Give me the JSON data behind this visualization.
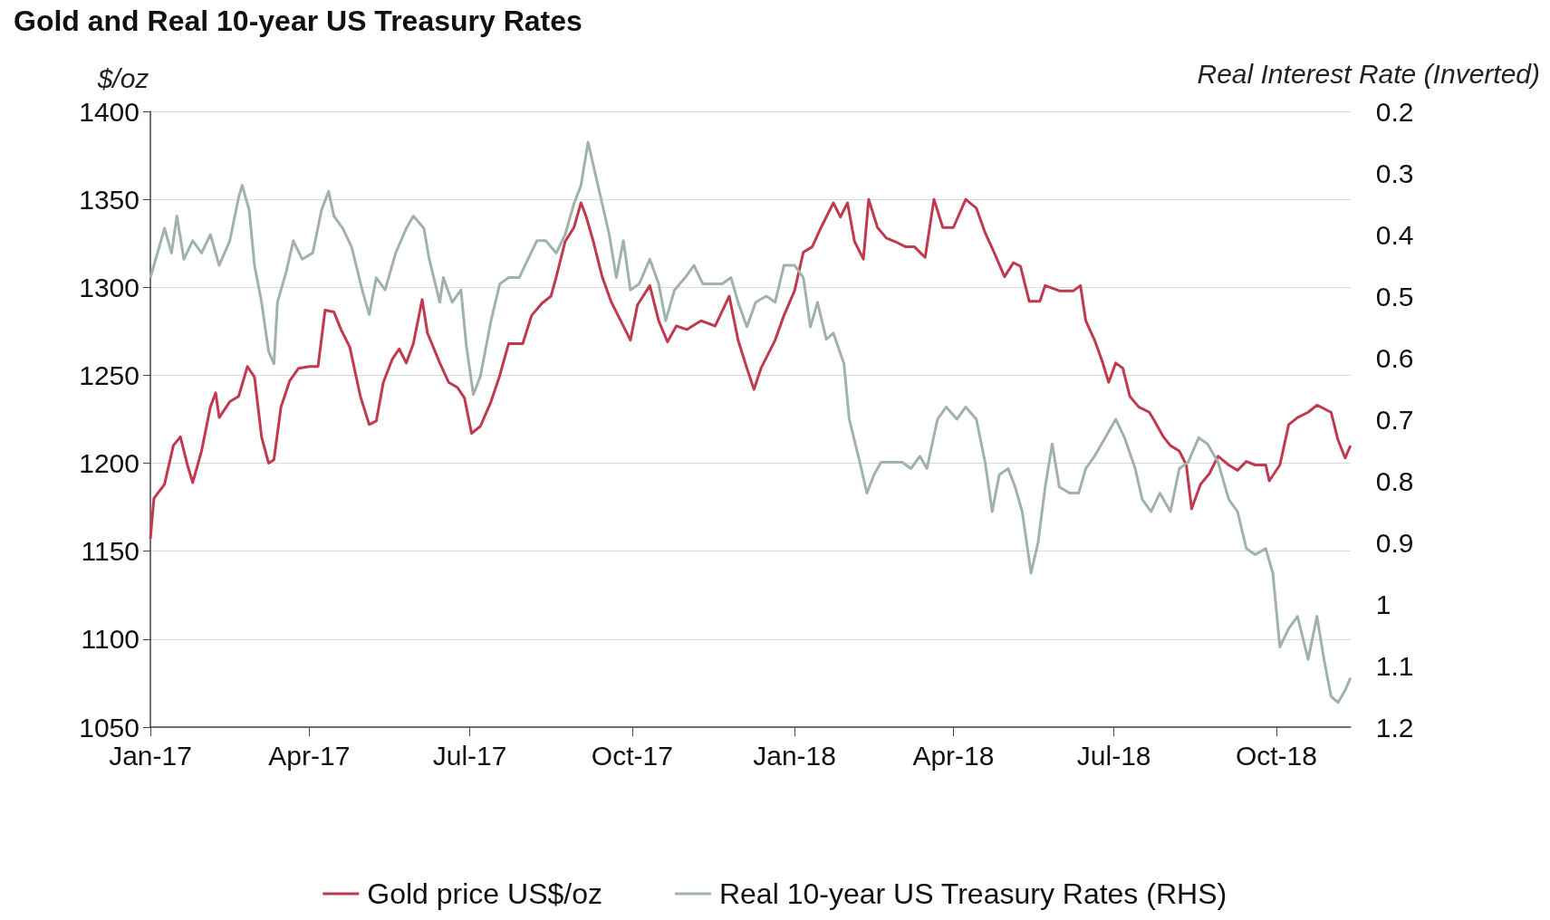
{
  "chart_data": {
    "type": "line",
    "title": "Gold and Real 10-year US Treasury Rates",
    "ylabel": "$/oz",
    "y2label": "Real Interest Rate (Inverted)",
    "xlim": [
      "2017-01-01",
      "2018-11-12"
    ],
    "xticks": [
      {
        "value": "2017-01-01",
        "label": "Jan-17"
      },
      {
        "value": "2017-04-01",
        "label": "Apr-17"
      },
      {
        "value": "2017-07-01",
        "label": "Jul-17"
      },
      {
        "value": "2017-10-01",
        "label": "Oct-17"
      },
      {
        "value": "2018-01-01",
        "label": "Jan-18"
      },
      {
        "value": "2018-04-01",
        "label": "Apr-18"
      },
      {
        "value": "2018-07-01",
        "label": "Jul-18"
      },
      {
        "value": "2018-10-01",
        "label": "Oct-18"
      }
    ],
    "ylim": [
      1050,
      1400
    ],
    "yticks": [
      1050,
      1100,
      1150,
      1200,
      1250,
      1300,
      1350,
      1400
    ],
    "y2lim": [
      1.2,
      0.2
    ],
    "y2ticks": [
      0.2,
      0.3,
      0.4,
      0.5,
      0.6,
      0.7,
      0.8,
      0.9,
      1,
      1.1,
      1.2
    ],
    "grid": "y",
    "legend": "bottom",
    "series": [
      {
        "name": "Gold price US$/oz",
        "color": "#c0394e",
        "x": [
          "2017-01-01",
          "2017-01-03",
          "2017-01-09",
          "2017-01-14",
          "2017-01-18",
          "2017-01-22",
          "2017-01-25",
          "2017-01-30",
          "2017-02-04",
          "2017-02-07",
          "2017-02-09",
          "2017-02-15",
          "2017-02-20",
          "2017-02-25",
          "2017-03-01",
          "2017-03-05",
          "2017-03-09",
          "2017-03-12",
          "2017-03-16",
          "2017-03-21",
          "2017-03-26",
          "2017-04-01",
          "2017-04-06",
          "2017-04-10",
          "2017-04-15",
          "2017-04-19",
          "2017-04-24",
          "2017-04-30",
          "2017-05-05",
          "2017-05-09",
          "2017-05-13",
          "2017-05-18",
          "2017-05-22",
          "2017-05-26",
          "2017-05-30",
          "2017-06-04",
          "2017-06-07",
          "2017-06-14",
          "2017-06-19",
          "2017-06-24",
          "2017-06-28",
          "2017-07-02",
          "2017-07-07",
          "2017-07-13",
          "2017-07-18",
          "2017-07-23",
          "2017-07-31",
          "2017-08-05",
          "2017-08-11",
          "2017-08-16",
          "2017-08-19",
          "2017-08-24",
          "2017-08-29",
          "2017-09-02",
          "2017-09-05",
          "2017-09-09",
          "2017-09-14",
          "2017-09-19",
          "2017-09-25",
          "2017-09-30",
          "2017-10-04",
          "2017-10-11",
          "2017-10-16",
          "2017-10-21",
          "2017-10-26",
          "2017-11-01",
          "2017-11-09",
          "2017-11-17",
          "2017-11-25",
          "2017-11-30",
          "2017-12-05",
          "2017-12-09",
          "2017-12-13",
          "2017-12-21",
          "2017-12-26",
          "2018-01-01",
          "2018-01-06",
          "2018-01-11",
          "2018-01-16",
          "2018-01-23",
          "2018-01-27",
          "2018-01-31",
          "2018-02-04",
          "2018-02-09",
          "2018-02-12",
          "2018-02-17",
          "2018-02-22",
          "2018-02-27",
          "2018-03-05",
          "2018-03-10",
          "2018-03-16",
          "2018-03-21",
          "2018-03-26",
          "2018-04-01",
          "2018-04-08",
          "2018-04-14",
          "2018-04-19",
          "2018-04-24",
          "2018-04-30",
          "2018-05-05",
          "2018-05-09",
          "2018-05-14",
          "2018-05-20",
          "2018-05-23",
          "2018-05-31",
          "2018-06-08",
          "2018-06-12",
          "2018-06-15",
          "2018-06-20",
          "2018-06-24",
          "2018-06-28",
          "2018-07-02",
          "2018-07-06",
          "2018-07-10",
          "2018-07-15",
          "2018-07-21",
          "2018-07-24",
          "2018-07-29",
          "2018-08-02",
          "2018-08-07",
          "2018-08-11",
          "2018-08-14",
          "2018-08-19",
          "2018-08-24",
          "2018-08-29",
          "2018-09-04",
          "2018-09-09",
          "2018-09-14",
          "2018-09-19",
          "2018-09-25",
          "2018-09-27",
          "2018-10-03",
          "2018-10-08",
          "2018-10-13",
          "2018-10-19",
          "2018-10-24",
          "2018-11-01",
          "2018-11-05",
          "2018-11-09",
          "2018-11-12"
        ],
        "values": [
          1157,
          1180,
          1188,
          1210,
          1215,
          1199,
          1189,
          1207,
          1232,
          1240,
          1226,
          1235,
          1238,
          1255,
          1249,
          1215,
          1200,
          1202,
          1232,
          1247,
          1254,
          1255,
          1255,
          1287,
          1286,
          1276,
          1266,
          1238,
          1222,
          1224,
          1246,
          1259,
          1265,
          1257,
          1268,
          1293,
          1274,
          1257,
          1246,
          1243,
          1237,
          1217,
          1221,
          1235,
          1250,
          1268,
          1268,
          1284,
          1291,
          1295,
          1306,
          1326,
          1334,
          1348,
          1340,
          1326,
          1306,
          1292,
          1280,
          1270,
          1290,
          1301,
          1281,
          1269,
          1278,
          1276,
          1281,
          1278,
          1295,
          1270,
          1254,
          1242,
          1254,
          1270,
          1284,
          1298,
          1320,
          1323,
          1334,
          1348,
          1340,
          1348,
          1326,
          1316,
          1350,
          1334,
          1328,
          1326,
          1323,
          1323,
          1317,
          1350,
          1334,
          1334,
          1350,
          1345,
          1331,
          1320,
          1306,
          1314,
          1312,
          1292,
          1292,
          1301,
          1298,
          1298,
          1301,
          1281,
          1270,
          1259,
          1246,
          1257,
          1254,
          1238,
          1232,
          1229,
          1224,
          1215,
          1210,
          1207,
          1199,
          1174,
          1188,
          1194,
          1204,
          1199,
          1196,
          1201,
          1199,
          1199,
          1190,
          1199,
          1222,
          1226,
          1229,
          1233,
          1229,
          1213,
          1203,
          1210
        ]
      },
      {
        "name": "Real 10-year US Treasury Rates (RHS)",
        "color": "#9fb2ab",
        "axis": "y2",
        "x": [
          "2017-01-01",
          "2017-01-03",
          "2017-01-09",
          "2017-01-13",
          "2017-01-16",
          "2017-01-20",
          "2017-01-25",
          "2017-01-30",
          "2017-02-04",
          "2017-02-09",
          "2017-02-15",
          "2017-02-20",
          "2017-02-22",
          "2017-02-26",
          "2017-03-01",
          "2017-03-05",
          "2017-03-09",
          "2017-03-12",
          "2017-03-14",
          "2017-03-19",
          "2017-03-23",
          "2017-03-28",
          "2017-04-03",
          "2017-04-08",
          "2017-04-12",
          "2017-04-15",
          "2017-04-20",
          "2017-04-25",
          "2017-05-01",
          "2017-05-05",
          "2017-05-09",
          "2017-05-14",
          "2017-05-20",
          "2017-05-26",
          "2017-05-30",
          "2017-06-05",
          "2017-06-08",
          "2017-06-14",
          "2017-06-16",
          "2017-06-21",
          "2017-06-26",
          "2017-06-29",
          "2017-07-03",
          "2017-07-07",
          "2017-07-13",
          "2017-07-18",
          "2017-07-23",
          "2017-07-29",
          "2017-08-03",
          "2017-08-08",
          "2017-08-13",
          "2017-08-19",
          "2017-08-24",
          "2017-08-29",
          "2017-09-02",
          "2017-09-06",
          "2017-09-10",
          "2017-09-14",
          "2017-09-18",
          "2017-09-22",
          "2017-09-26",
          "2017-09-30",
          "2017-10-05",
          "2017-10-11",
          "2017-10-16",
          "2017-10-20",
          "2017-10-25",
          "2017-10-31",
          "2017-11-05",
          "2017-11-10",
          "2017-11-16",
          "2017-11-21",
          "2017-11-26",
          "2017-11-30",
          "2017-12-05",
          "2017-12-10",
          "2017-12-16",
          "2017-12-21",
          "2017-12-26",
          "2018-01-01",
          "2018-01-06",
          "2018-01-10",
          "2018-01-14",
          "2018-01-19",
          "2018-01-23",
          "2018-01-29",
          "2018-02-01",
          "2018-02-07",
          "2018-02-11",
          "2018-02-15",
          "2018-02-19",
          "2018-02-25",
          "2018-03-03",
          "2018-03-08",
          "2018-03-13",
          "2018-03-17",
          "2018-03-23",
          "2018-03-28",
          "2018-04-03",
          "2018-04-08",
          "2018-04-14",
          "2018-04-19",
          "2018-04-23",
          "2018-04-27",
          "2018-05-02",
          "2018-05-06",
          "2018-05-10",
          "2018-05-15",
          "2018-05-19",
          "2018-05-23",
          "2018-05-27",
          "2018-05-31",
          "2018-06-06",
          "2018-06-11",
          "2018-06-15",
          "2018-06-20",
          "2018-06-26",
          "2018-07-02",
          "2018-07-07",
          "2018-07-13",
          "2018-07-17",
          "2018-07-22",
          "2018-07-27",
          "2018-08-02",
          "2018-08-07",
          "2018-08-12",
          "2018-08-18",
          "2018-08-23",
          "2018-08-29",
          "2018-09-04",
          "2018-09-09",
          "2018-09-14",
          "2018-09-19",
          "2018-09-25",
          "2018-09-29",
          "2018-10-03",
          "2018-10-08",
          "2018-10-13",
          "2018-10-19",
          "2018-10-24",
          "2018-10-28",
          "2018-11-01",
          "2018-11-05",
          "2018-11-09",
          "2018-11-12"
        ],
        "values": [
          0.47,
          0.45,
          0.39,
          0.43,
          0.37,
          0.44,
          0.41,
          0.43,
          0.4,
          0.45,
          0.41,
          0.34,
          0.32,
          0.36,
          0.45,
          0.51,
          0.59,
          0.61,
          0.51,
          0.46,
          0.41,
          0.44,
          0.43,
          0.36,
          0.33,
          0.37,
          0.39,
          0.42,
          0.49,
          0.53,
          0.47,
          0.49,
          0.43,
          0.39,
          0.37,
          0.39,
          0.44,
          0.51,
          0.47,
          0.51,
          0.49,
          0.58,
          0.66,
          0.63,
          0.54,
          0.48,
          0.47,
          0.47,
          0.44,
          0.41,
          0.41,
          0.43,
          0.4,
          0.35,
          0.32,
          0.25,
          0.3,
          0.35,
          0.4,
          0.47,
          0.41,
          0.49,
          0.48,
          0.44,
          0.48,
          0.54,
          0.49,
          0.47,
          0.45,
          0.48,
          0.48,
          0.48,
          0.47,
          0.51,
          0.55,
          0.51,
          0.5,
          0.51,
          0.45,
          0.45,
          0.47,
          0.55,
          0.51,
          0.57,
          0.56,
          0.61,
          0.7,
          0.77,
          0.82,
          0.79,
          0.77,
          0.77,
          0.77,
          0.78,
          0.76,
          0.78,
          0.7,
          0.68,
          0.7,
          0.68,
          0.7,
          0.77,
          0.85,
          0.79,
          0.78,
          0.81,
          0.85,
          0.95,
          0.9,
          0.81,
          0.74,
          0.81,
          0.82,
          0.82,
          0.78,
          0.76,
          0.73,
          0.7,
          0.73,
          0.78,
          0.83,
          0.85,
          0.82,
          0.85,
          0.78,
          0.77,
          0.73,
          0.74,
          0.77,
          0.83,
          0.85,
          0.91,
          0.92,
          0.91,
          0.95,
          1.07,
          1.04,
          1.02,
          1.09,
          1.02,
          1.09,
          1.15,
          1.16,
          1.14,
          1.12
        ]
      }
    ]
  }
}
